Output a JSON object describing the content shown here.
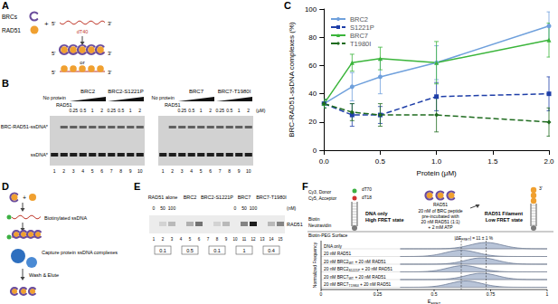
{
  "chart_data": {
    "type": "line",
    "x": [
      0,
      0.25,
      0.5,
      1,
      2
    ],
    "xlabel": "Protein (μM)",
    "ylabel": "BRC-RAD51-ssDNA complexes (%)",
    "xlim": [
      0,
      2
    ],
    "xticks": [
      {
        "value": 0,
        "label": "0.0"
      },
      {
        "value": 0.5,
        "label": "0.5"
      },
      {
        "value": 1,
        "label": "1.0"
      },
      {
        "value": 1.5,
        "label": "1.5"
      },
      {
        "value": 2,
        "label": "2.0"
      }
    ],
    "ylim": [
      0,
      100
    ],
    "yticks": [
      0,
      20,
      40,
      60,
      80,
      100
    ],
    "grid": false,
    "legend": "upper left",
    "series": [
      {
        "name": "BRC2",
        "color": "#6fa0dc",
        "line_style": "solid",
        "marker": "circle",
        "values": [
          33,
          45,
          52,
          62,
          88
        ],
        "errors": [
          3,
          10,
          12,
          12,
          10
        ]
      },
      {
        "name": "S1221P",
        "color": "#1f3fa8",
        "line_style": "dashed",
        "marker": "square",
        "values": [
          33,
          25,
          25,
          38,
          40
        ],
        "errors": [
          3,
          8,
          6,
          10,
          12
        ]
      },
      {
        "name": "BRC7",
        "color": "#3bb53b",
        "line_style": "solid",
        "marker": "triangle",
        "values": [
          33,
          62,
          65,
          62,
          78
        ],
        "errors": [
          3,
          6,
          8,
          15,
          12
        ]
      },
      {
        "name": "T1980I",
        "color": "#1e6b1e",
        "line_style": "dashed",
        "marker": "diamond",
        "values": [
          33,
          27,
          25,
          25,
          20
        ],
        "errors": [
          3,
          6,
          8,
          12,
          10
        ]
      }
    ]
  },
  "panels": {
    "A": {
      "letter": "A",
      "brcs": "BRCs",
      "rad51": "RAD51",
      "plus": "+",
      "five": "5'",
      "three": "3'",
      "ssdna": "dT40",
      "or": "or"
    },
    "B": {
      "letter": "B",
      "complex_label": "BRC-RAD51-ssDNA*",
      "free_label": "ssDNA*",
      "unit": "(μM)",
      "gels": [
        {
          "no_protein": "No protein",
          "rad51": "RAD51",
          "groups": [
            {
              "label": "BRC2",
              "concentrations": [
                "0.25",
                "0.5",
                "1",
                "2"
              ]
            },
            {
              "label": "BRC2-S1221P",
              "concentrations": [
                "0.25",
                "0.5",
                "1",
                "2"
              ]
            }
          ],
          "lanes": [
            "1",
            "2",
            "3",
            "4",
            "5",
            "6",
            "7",
            "8",
            "9",
            "10"
          ]
        },
        {
          "no_protein": "No protein",
          "rad51": "RAD51",
          "groups": [
            {
              "label": "BRC7",
              "concentrations": [
                "0.25",
                "0.5",
                "1",
                "2"
              ]
            },
            {
              "label": "BRC7-T1980I",
              "concentrations": [
                "0.25",
                "0.5",
                "1",
                "2"
              ]
            }
          ],
          "lanes": [
            "1",
            "2",
            "3",
            "4",
            "5",
            "6",
            "7",
            "8",
            "9",
            "10"
          ]
        }
      ]
    },
    "C": {
      "letter": "C"
    },
    "D": {
      "letter": "D",
      "plus": "+",
      "biotinylated": "Biotinylated ssDNA",
      "capture": "Capture protein ssDNA complexes",
      "wash": "Wash & Elute"
    },
    "E": {
      "letter": "E",
      "unit": "(nM)",
      "band": "RAD51",
      "groups": [
        {
          "label": "RAD51 alone",
          "concentrations": [
            "0",
            "50",
            "100"
          ],
          "ratio": 0.1
        },
        {
          "label": "BRC2",
          "concentrations": [
            null,
            null,
            null
          ],
          "ratio": 0.5
        },
        {
          "label": "BRC2-S1221P",
          "concentrations": [
            null,
            null,
            null
          ],
          "ratio": 0.1
        },
        {
          "label": "BRC7",
          "concentrations": [
            "0",
            "50",
            "100"
          ],
          "ratio": 1
        },
        {
          "label": "BRC7-T1980I",
          "concentrations": [
            null,
            null,
            null
          ],
          "ratio": 0.4
        }
      ],
      "lanes": [
        "1",
        "2",
        "3",
        "4",
        "5",
        "6",
        "7",
        "8",
        "9",
        "10",
        "11",
        "12",
        "13",
        "14",
        "15"
      ]
    },
    "F": {
      "letter": "F",
      "donor": "Cy3, Donor",
      "acceptor": "Cy5, Acceptor",
      "dt_top": "dT70",
      "dt_bottom": "dT18",
      "biotin": "Biotin",
      "neutravidin": "Neutravidin",
      "surface": "Biotin-PEG Surface",
      "left_state": [
        "DNA only",
        "High FRET state"
      ],
      "middle_text": [
        "20 nM of BRC peptide",
        "pre-incubated with",
        "20 nM RAD51 (1:1)",
        "+ 2 mM ATP"
      ],
      "rad51": "RAD51",
      "right_state": [
        "RAD51 Filament",
        "Low FRET state"
      ],
      "three": "3'",
      "histogram": {
        "xlabel": [
          {
            "text": "E"
          },
          {
            "sub": "FRET"
          }
        ],
        "ylabel": "Normalized Frequency",
        "xlim": [
          0,
          1
        ],
        "xticks": [
          0,
          0.25,
          0.5,
          0.75,
          1
        ],
        "dashed_lines": [
          0.62,
          0.73
        ],
        "annotation": [
          {
            "text": "|ΔE"
          },
          {
            "sub": "FRET"
          },
          {
            "text": "| = 11 ± 1 %"
          }
        ],
        "rows": [
          {
            "label": [
              {
                "text": "DNA only"
              }
            ],
            "peak": 0.73
          },
          {
            "label": [
              {
                "text": "20 nM RAD51"
              }
            ],
            "peak": 0.62
          },
          {
            "label": [
              {
                "text": "20 nM BRC2"
              },
              {
                "sub": "WT"
              },
              {
                "text": " + 20 nM RAD51"
              }
            ],
            "peak": 0.71
          },
          {
            "label": [
              {
                "text": "20 nM BRC2"
              },
              {
                "sub": "S1221P"
              },
              {
                "text": " + 20 nM RAD51"
              }
            ],
            "peak": 0.63
          },
          {
            "label": [
              {
                "text": "20 nM BRC7"
              },
              {
                "sub": "WT"
              },
              {
                "text": " + 20 nM RAD51"
              }
            ],
            "peak": 0.71
          },
          {
            "label": [
              {
                "text": "20 nM BRC7"
              },
              {
                "sub": "T1980I"
              },
              {
                "text": " + 20 nM RAD51"
              }
            ],
            "peak": 0.64
          }
        ]
      }
    }
  }
}
